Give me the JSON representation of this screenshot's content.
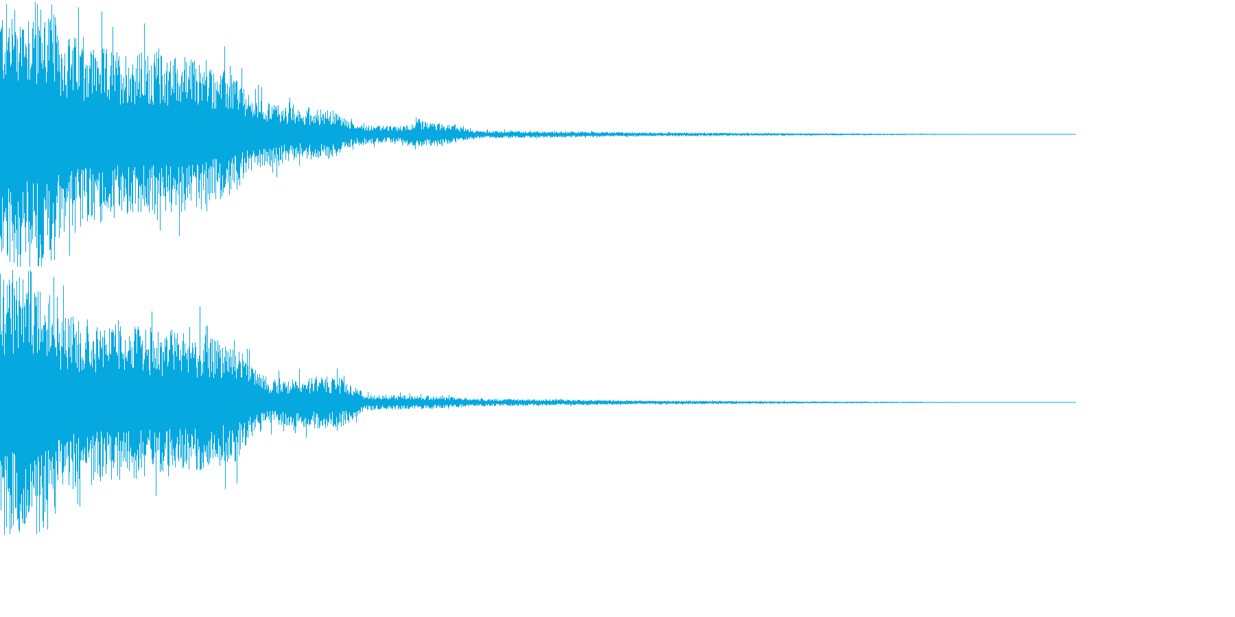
{
  "colors": {
    "waveform": "#06a8e0",
    "background": "#ffffff"
  },
  "audio": {
    "channels": [
      {
        "name": "",
        "envelope": {
          "peak_amplitude": 1.0,
          "segments": [
            {
              "t": 0.0,
              "a": 1.0
            },
            {
              "t": 0.05,
              "a": 1.0
            },
            {
              "t": 0.052,
              "a": 0.8
            },
            {
              "t": 0.1,
              "a": 0.65
            },
            {
              "t": 0.17,
              "a": 0.6
            },
            {
              "t": 0.22,
              "a": 0.45
            },
            {
              "t": 0.23,
              "a": 0.3
            },
            {
              "t": 0.28,
              "a": 0.18
            },
            {
              "t": 0.29,
              "a": 0.2
            },
            {
              "t": 0.31,
              "a": 0.18
            },
            {
              "t": 0.33,
              "a": 0.08
            },
            {
              "t": 0.37,
              "a": 0.06
            },
            {
              "t": 0.39,
              "a": 0.1
            },
            {
              "t": 0.42,
              "a": 0.07
            },
            {
              "t": 0.44,
              "a": 0.03
            },
            {
              "t": 0.6,
              "a": 0.015
            },
            {
              "t": 0.76,
              "a": 0.008
            },
            {
              "t": 0.9,
              "a": 0.003
            },
            {
              "t": 1.0,
              "a": 0.0
            }
          ]
        }
      },
      {
        "name": "",
        "envelope": {
          "peak_amplitude": 1.0,
          "segments": [
            {
              "t": 0.0,
              "a": 1.0
            },
            {
              "t": 0.05,
              "a": 1.0
            },
            {
              "t": 0.052,
              "a": 0.7
            },
            {
              "t": 0.1,
              "a": 0.6
            },
            {
              "t": 0.17,
              "a": 0.55
            },
            {
              "t": 0.22,
              "a": 0.45
            },
            {
              "t": 0.23,
              "a": 0.3
            },
            {
              "t": 0.25,
              "a": 0.18
            },
            {
              "t": 0.3,
              "a": 0.2
            },
            {
              "t": 0.32,
              "a": 0.18
            },
            {
              "t": 0.34,
              "a": 0.06
            },
            {
              "t": 0.4,
              "a": 0.05
            },
            {
              "t": 0.44,
              "a": 0.03
            },
            {
              "t": 0.6,
              "a": 0.015
            },
            {
              "t": 0.75,
              "a": 0.008
            },
            {
              "t": 0.9,
              "a": 0.003
            },
            {
              "t": 1.0,
              "a": 0.0
            }
          ]
        }
      }
    ]
  }
}
